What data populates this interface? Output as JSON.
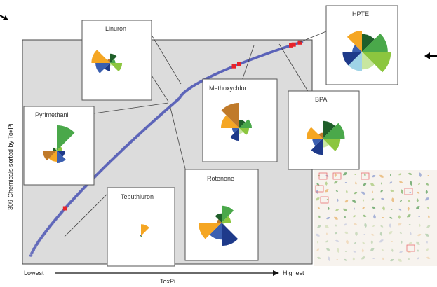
{
  "chart_data": {
    "type": "scatter",
    "ylabel": "309 Chemicals sorted by ToxPi",
    "xlabel": "ToxPi",
    "x_low_label": "Lowest",
    "x_high_label": "Highest",
    "n_points": 309,
    "highlighted": [
      {
        "name": "Pyrimethanil",
        "rank": 40
      },
      {
        "name": "Tebuthiuron",
        "rank": 40
      },
      {
        "name": "Linuron",
        "rank": 232
      },
      {
        "name": "Rotenone",
        "rank": 238
      },
      {
        "name": "Methoxychlor",
        "rank": 297
      },
      {
        "name": "BPA",
        "rank": 300
      },
      {
        "name": "HPTE",
        "rank": 307
      }
    ],
    "toxpi_profiles": [
      {
        "name": "Linuron",
        "slices": [
          {
            "color": "#1f5f2a",
            "r": 0.35
          },
          {
            "color": "#4aa84a",
            "r": 0.2
          },
          {
            "color": "#8cc63f",
            "r": 0.45
          },
          {
            "color": "#c8e6a0",
            "r": 0.1
          },
          {
            "color": "#1e3a8a",
            "r": 0.3
          },
          {
            "color": "#3b5fb0",
            "r": 0.55
          },
          {
            "color": "#f5a623",
            "r": 0.7
          },
          {
            "color": "#c07a2a",
            "r": 0.15
          }
        ]
      },
      {
        "name": "Pyrimethanil",
        "slices": [
          {
            "color": "#4aa84a",
            "r": 0.9
          },
          {
            "color": "#8cc63f",
            "r": 0.2
          },
          {
            "color": "#1e3a8a",
            "r": 0.3
          },
          {
            "color": "#3b5fb0",
            "r": 0.45
          },
          {
            "color": "#f5a623",
            "r": 0.4
          },
          {
            "color": "#c07a2a",
            "r": 0.5
          },
          {
            "color": "#1f5f2a",
            "r": 0.15
          },
          {
            "color": "#c8e6a0",
            "r": 0.1
          }
        ]
      },
      {
        "name": "Tebuthiuron",
        "slices": [
          {
            "color": "#f5a623",
            "r": 0.6
          },
          {
            "color": "#c07a2a",
            "r": 0.05
          },
          {
            "color": "#1f5f2a",
            "r": 0.05
          },
          {
            "color": "#4aa84a",
            "r": 0.05
          },
          {
            "color": "#8cc63f",
            "r": 0.05
          },
          {
            "color": "#c8e6a0",
            "r": 0.05
          },
          {
            "color": "#1e3a8a",
            "r": 0.05
          },
          {
            "color": "#3b5fb0",
            "r": 0.05
          }
        ]
      },
      {
        "name": "Methoxychlor",
        "slices": [
          {
            "color": "#1f5f2a",
            "r": 0.3
          },
          {
            "color": "#4aa84a",
            "r": 0.45
          },
          {
            "color": "#8cc63f",
            "r": 0.35
          },
          {
            "color": "#c8e6a0",
            "r": 0.2
          },
          {
            "color": "#1e3a8a",
            "r": 0.45
          },
          {
            "color": "#3b5fb0",
            "r": 0.25
          },
          {
            "color": "#f5a623",
            "r": 0.65
          },
          {
            "color": "#c07a2a",
            "r": 0.9
          }
        ]
      },
      {
        "name": "Rotenone",
        "slices": [
          {
            "color": "#4aa84a",
            "r": 0.55
          },
          {
            "color": "#8cc63f",
            "r": 0.3
          },
          {
            "color": "#c8e6a0",
            "r": 0.1
          },
          {
            "color": "#1e3a8a",
            "r": 0.75
          },
          {
            "color": "#3b5fb0",
            "r": 0.55
          },
          {
            "color": "#f5a623",
            "r": 0.75
          },
          {
            "color": "#c07a2a",
            "r": 0.15
          },
          {
            "color": "#1f5f2a",
            "r": 0.3
          }
        ]
      },
      {
        "name": "BPA",
        "slices": [
          {
            "color": "#1f5f2a",
            "r": 0.6
          },
          {
            "color": "#4aa84a",
            "r": 0.75
          },
          {
            "color": "#8cc63f",
            "r": 0.6
          },
          {
            "color": "#c8e6a0",
            "r": 0.3
          },
          {
            "color": "#1e3a8a",
            "r": 0.55
          },
          {
            "color": "#3b5fb0",
            "r": 0.35
          },
          {
            "color": "#f5a623",
            "r": 0.55
          },
          {
            "color": "#c07a2a",
            "r": 0.2
          }
        ]
      },
      {
        "name": "HPTE",
        "slices": [
          {
            "color": "#1f5f2a",
            "r": 0.55
          },
          {
            "color": "#4aa84a",
            "r": 0.8
          },
          {
            "color": "#8cc63f",
            "r": 0.9
          },
          {
            "color": "#c8e6a0",
            "r": 0.55
          },
          {
            "color": "#9fd3e6",
            "r": 0.6
          },
          {
            "color": "#1e3a8a",
            "r": 0.6
          },
          {
            "color": "#3b5fb0",
            "r": 0.3
          },
          {
            "color": "#f5a623",
            "r": 0.65
          }
        ]
      }
    ]
  }
}
